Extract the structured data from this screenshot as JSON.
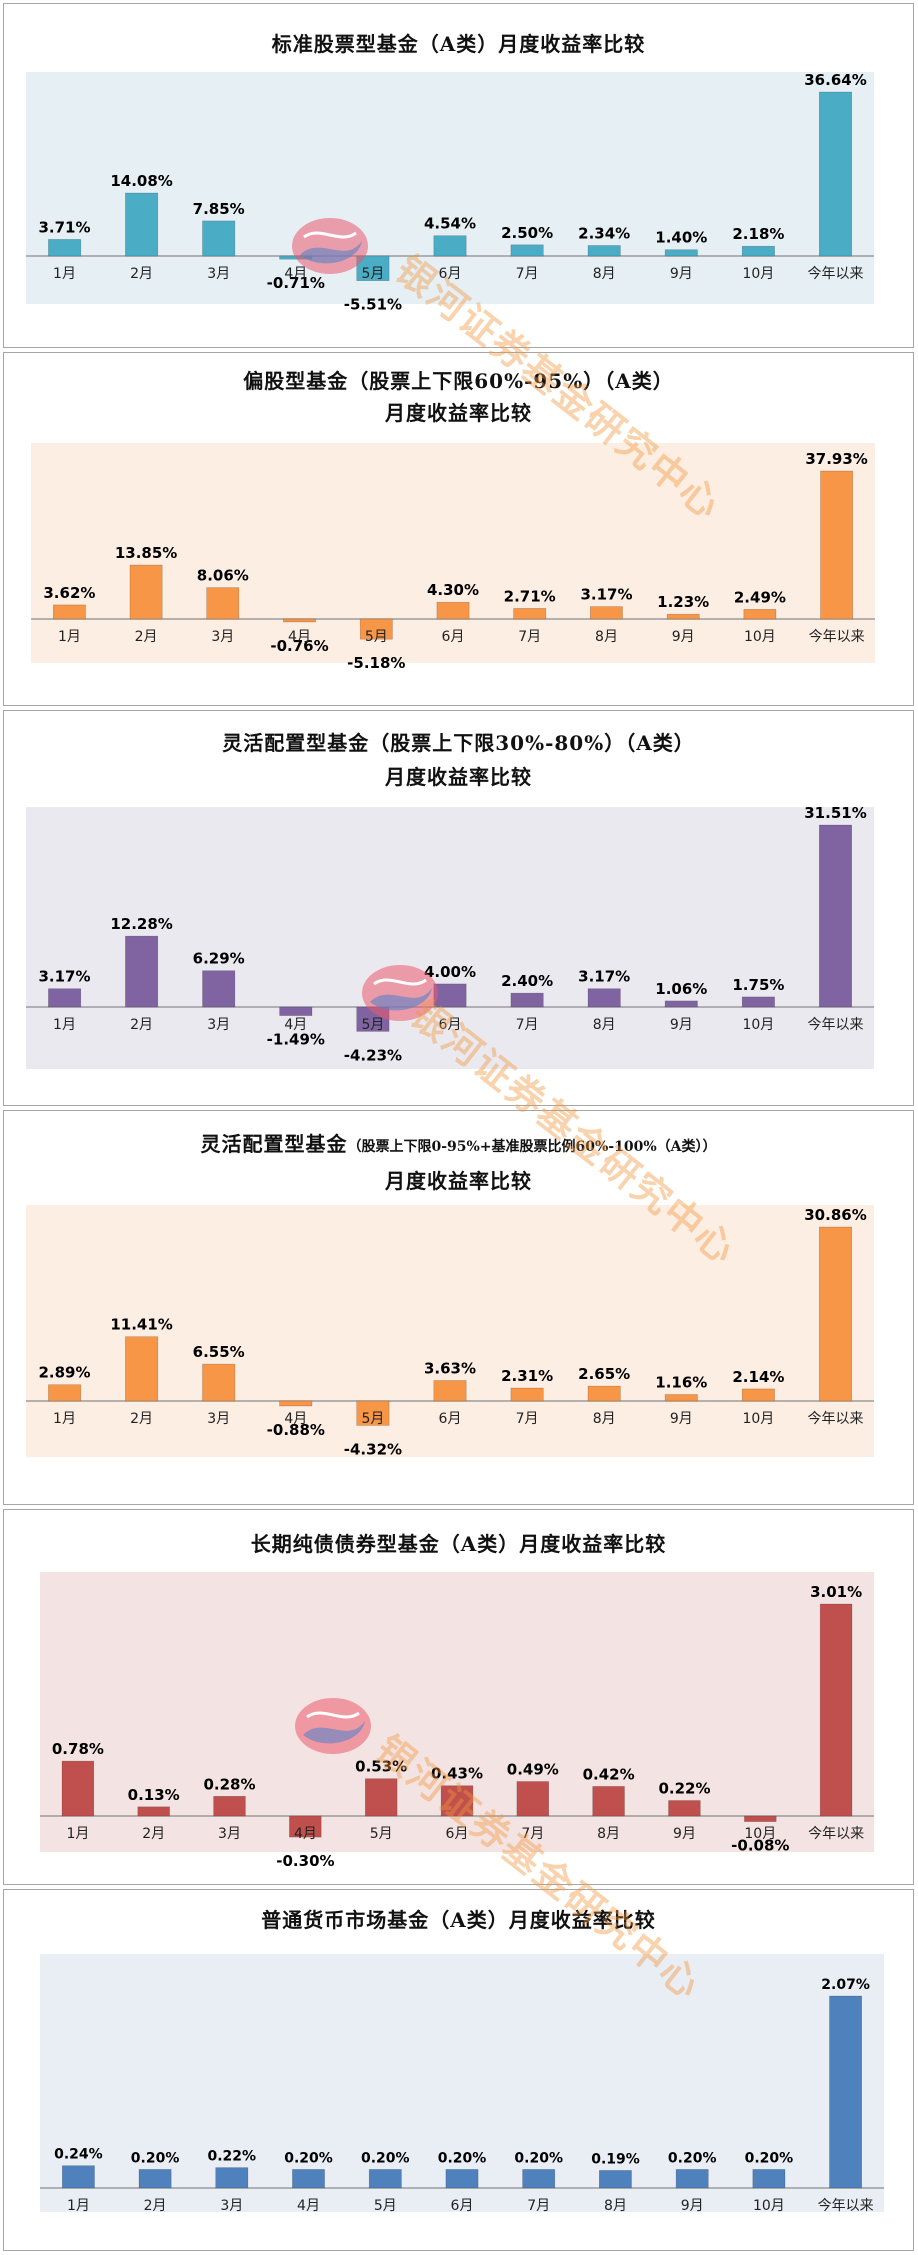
{
  "watermark": {
    "text": "银河证券基金研究中心"
  },
  "chart_data": [
    {
      "type": "bar",
      "title": [
        "标准股票型基金（A类）月度收益率比较"
      ],
      "categories": [
        "1月",
        "2月",
        "3月",
        "4月",
        "5月",
        "6月",
        "7月",
        "8月",
        "9月",
        "10月",
        "今年以来"
      ],
      "values": [
        3.71,
        14.08,
        7.85,
        -0.71,
        -5.51,
        4.54,
        2.5,
        2.34,
        1.4,
        2.18,
        36.64
      ],
      "labels": [
        "3.71%",
        "14.08%",
        "7.85%",
        "-0.71%",
        "-5.51%",
        "4.54%",
        "2.50%",
        "2.34%",
        "1.40%",
        "2.18%",
        "36.64%"
      ],
      "bar_color": "#4bacc6",
      "plot_bg": "#e6eff4",
      "ylim": [
        -8,
        40
      ]
    },
    {
      "type": "bar",
      "title": [
        "偏股型基金（股票上下限60%-95%）（A类）",
        "月度收益率比较"
      ],
      "categories": [
        "1月",
        "2月",
        "3月",
        "4月",
        "5月",
        "6月",
        "7月",
        "8月",
        "9月",
        "10月",
        "今年以来"
      ],
      "values": [
        3.62,
        13.85,
        8.06,
        -0.76,
        -5.18,
        4.3,
        2.71,
        3.17,
        1.23,
        2.49,
        37.93
      ],
      "labels": [
        "3.62%",
        "13.85%",
        "8.06%",
        "-0.76%",
        "-5.18%",
        "4.30%",
        "2.71%",
        "3.17%",
        "1.23%",
        "2.49%",
        "37.93%"
      ],
      "bar_color": "#f79646",
      "plot_bg": "#fdeee4",
      "ylim": [
        -8,
        42
      ]
    },
    {
      "type": "bar",
      "title": [
        "灵活配置型基金（股票上下限30%-80%）（A类）",
        "月度收益率比较"
      ],
      "categories": [
        "1月",
        "2月",
        "3月",
        "4月",
        "5月",
        "6月",
        "7月",
        "8月",
        "9月",
        "10月",
        "今年以来"
      ],
      "values": [
        3.17,
        12.28,
        6.29,
        -1.49,
        -4.23,
        4.0,
        2.4,
        3.17,
        1.06,
        1.75,
        31.51
      ],
      "labels": [
        "3.17%",
        "12.28%",
        "6.29%",
        "-1.49%",
        "-4.23%",
        "4.00%",
        "2.40%",
        "3.17%",
        "1.06%",
        "1.75%",
        "31.51%"
      ],
      "bar_color": "#8064a2",
      "plot_bg": "#ebe9f0",
      "ylim": [
        -7,
        34
      ]
    },
    {
      "type": "bar",
      "title_main": "灵活配置型基金",
      "title_small": "（股票上下限0-95%+基准股票比例60%-100%（A类））",
      "title_line2": "月度收益率比较",
      "categories": [
        "1月",
        "2月",
        "3月",
        "4月",
        "5月",
        "6月",
        "7月",
        "8月",
        "9月",
        "10月",
        "今年以来"
      ],
      "values": [
        2.89,
        11.41,
        6.55,
        -0.88,
        -4.32,
        3.63,
        2.31,
        2.65,
        1.16,
        2.14,
        30.86
      ],
      "labels": [
        "2.89%",
        "11.41%",
        "6.55%",
        "-0.88%",
        "-4.32%",
        "3.63%",
        "2.31%",
        "2.65%",
        "1.16%",
        "2.14%",
        "30.86%"
      ],
      "bar_color": "#f79646",
      "plot_bg": "#fdeee4",
      "ylim": [
        -7,
        34
      ]
    },
    {
      "type": "bar",
      "title": [
        "长期纯债债券型基金（A类）月度收益率比较"
      ],
      "categories": [
        "1月",
        "2月",
        "3月",
        "4月",
        "5月",
        "6月",
        "7月",
        "8月",
        "9月",
        "10月",
        "今年以来"
      ],
      "values": [
        0.78,
        0.13,
        0.28,
        -0.3,
        0.53,
        0.43,
        0.49,
        0.42,
        0.22,
        -0.08,
        3.01
      ],
      "labels": [
        "0.78%",
        "0.13%",
        "0.28%",
        "-0.30%",
        "0.53%",
        "0.43%",
        "0.49%",
        "0.42%",
        "0.22%",
        "-0.08%",
        "3.01%"
      ],
      "bar_color": "#c0504d",
      "plot_bg": "#f3e4e3",
      "ylim": [
        -0.6,
        3.4
      ]
    },
    {
      "type": "bar",
      "title": [
        "普通货币市场基金（A类）月度收益率比较"
      ],
      "categories": [
        "1月",
        "2月",
        "3月",
        "4月",
        "5月",
        "6月",
        "7月",
        "8月",
        "9月",
        "10月",
        "今年以来"
      ],
      "values": [
        0.24,
        0.2,
        0.22,
        0.2,
        0.2,
        0.2,
        0.2,
        0.19,
        0.2,
        0.2,
        2.07
      ],
      "labels": [
        "0.24%",
        "0.20%",
        "0.22%",
        "0.20%",
        "0.20%",
        "0.20%",
        "0.20%",
        "0.19%",
        "0.20%",
        "0.20%",
        "2.07%"
      ],
      "bar_color": "#4f81bd",
      "plot_bg": "#e9edf4",
      "ylim": [
        0,
        2.35
      ]
    }
  ]
}
